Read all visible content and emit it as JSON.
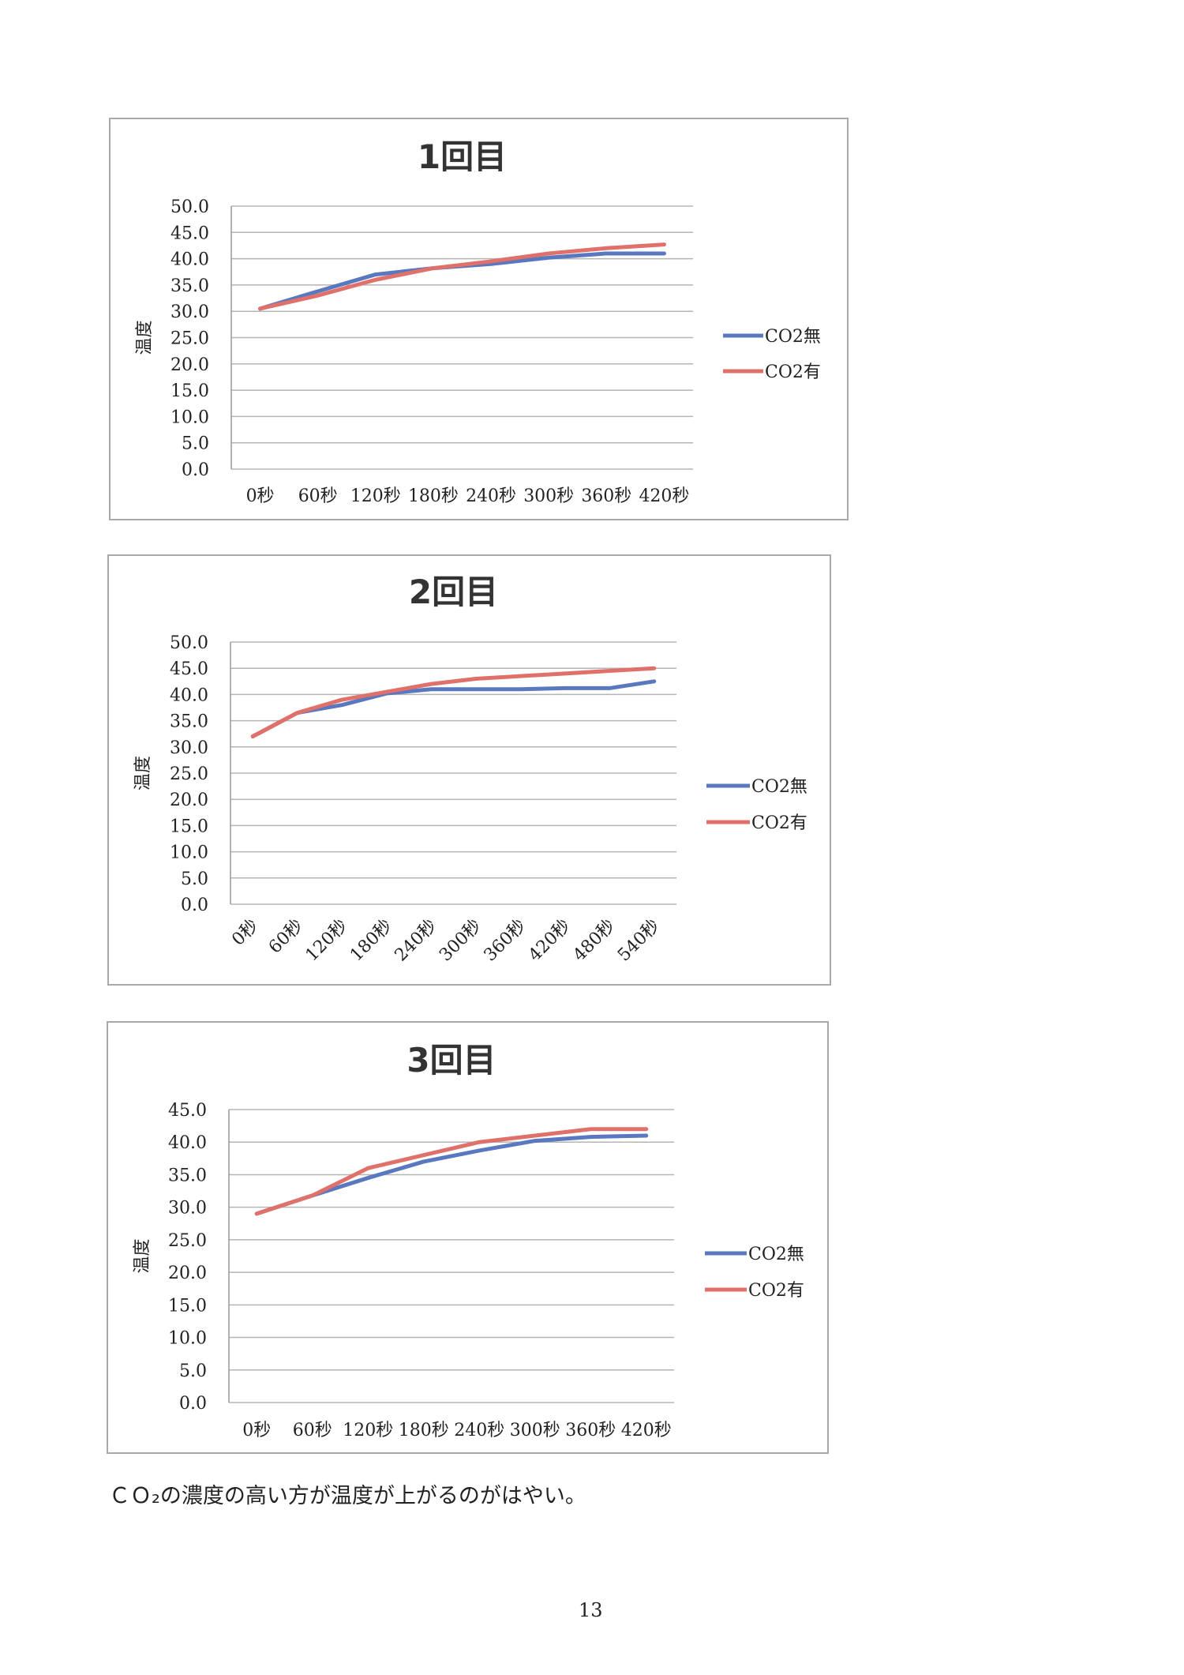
{
  "colors": {
    "no_co2": "#5a78bf",
    "with_co2": "#e0706a",
    "grid": "#b5b5b5"
  },
  "chart_data": [
    {
      "type": "line",
      "title": "1回目",
      "ylabel": "温度",
      "xlabel": "",
      "ylim": [
        0,
        50
      ],
      "yticks": [
        "0.0",
        "5.0",
        "10.0",
        "15.0",
        "20.0",
        "25.0",
        "30.0",
        "35.0",
        "40.0",
        "45.0",
        "50.0"
      ],
      "categories": [
        "0秒",
        "60秒",
        "120秒",
        "180秒",
        "240秒",
        "300秒",
        "360秒",
        "420秒"
      ],
      "legend_position": "right",
      "grid": true,
      "series": [
        {
          "name": "CO2無",
          "values": [
            30.5,
            33.8,
            37.0,
            38.2,
            39.0,
            40.2,
            41.0,
            41.0
          ]
        },
        {
          "name": "CO2有",
          "values": [
            30.5,
            33.0,
            36.0,
            38.2,
            39.5,
            41.0,
            42.0,
            42.7
          ]
        }
      ]
    },
    {
      "type": "line",
      "title": "2回目",
      "ylabel": "温度",
      "xlabel": "",
      "ylim": [
        0,
        50
      ],
      "yticks": [
        "0.0",
        "5.0",
        "10.0",
        "15.0",
        "20.0",
        "25.0",
        "30.0",
        "35.0",
        "40.0",
        "45.0",
        "50.0"
      ],
      "categories": [
        "0秒",
        "60秒",
        "120秒",
        "180秒",
        "240秒",
        "300秒",
        "360秒",
        "420秒",
        "480秒",
        "540秒"
      ],
      "rotated_labels": true,
      "legend_position": "right",
      "grid": true,
      "series": [
        {
          "name": "CO2無",
          "values": [
            32.0,
            36.5,
            38.0,
            40.2,
            41.0,
            41.0,
            41.0,
            41.2,
            41.2,
            42.5
          ]
        },
        {
          "name": "CO2有",
          "values": [
            32.0,
            36.5,
            39.0,
            40.5,
            42.0,
            43.0,
            43.5,
            44.0,
            44.5,
            45.0
          ]
        }
      ]
    },
    {
      "type": "line",
      "title": "3回目",
      "ylabel": "温度",
      "xlabel": "",
      "ylim": [
        0,
        45
      ],
      "yticks": [
        "0.0",
        "5.0",
        "10.0",
        "15.0",
        "20.0",
        "25.0",
        "30.0",
        "35.0",
        "40.0",
        "45.0"
      ],
      "categories": [
        "0秒",
        "60秒",
        "120秒",
        "180秒",
        "240秒",
        "300秒",
        "360秒",
        "420秒"
      ],
      "legend_position": "right",
      "grid": true,
      "series": [
        {
          "name": "CO2無",
          "values": [
            29.0,
            31.8,
            34.5,
            37.0,
            38.7,
            40.2,
            40.8,
            41.0
          ]
        },
        {
          "name": "CO2有",
          "values": [
            29.0,
            31.8,
            36.0,
            38.0,
            40.0,
            41.0,
            42.0,
            42.0
          ]
        }
      ]
    }
  ],
  "conclusion": "ＣＯ₂の濃度の高い方が温度が上がるのがはやい。",
  "page_number": "13"
}
